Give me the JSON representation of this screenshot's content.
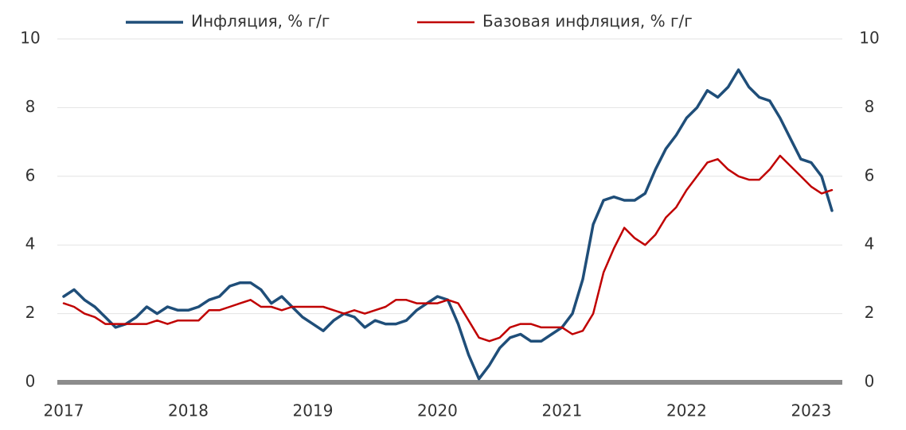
{
  "chart_data": {
    "type": "line",
    "categories": [
      "2017",
      null,
      null,
      null,
      null,
      null,
      null,
      null,
      null,
      null,
      null,
      null,
      "2018",
      null,
      null,
      null,
      null,
      null,
      null,
      null,
      null,
      null,
      null,
      null,
      "2019",
      null,
      null,
      null,
      null,
      null,
      null,
      null,
      null,
      null,
      null,
      null,
      "2020",
      null,
      null,
      null,
      null,
      null,
      null,
      null,
      null,
      null,
      null,
      null,
      "2021",
      null,
      null,
      null,
      null,
      null,
      null,
      null,
      null,
      null,
      null,
      null,
      "2022",
      null,
      null,
      null,
      null,
      null,
      null,
      null,
      null,
      null,
      null,
      null,
      "2023",
      null,
      null
    ],
    "series": [
      {
        "name": "Инфляция, % г/г",
        "color": "#1f4e79",
        "values": [
          2.5,
          2.7,
          2.4,
          2.2,
          1.9,
          1.6,
          1.7,
          1.9,
          2.2,
          2.0,
          2.2,
          2.1,
          2.1,
          2.2,
          2.4,
          2.5,
          2.8,
          2.9,
          2.9,
          2.7,
          2.3,
          2.5,
          2.2,
          1.9,
          1.7,
          1.5,
          1.8,
          2.0,
          1.9,
          1.6,
          1.8,
          1.7,
          1.7,
          1.8,
          2.1,
          2.3,
          2.5,
          2.4,
          1.7,
          0.8,
          0.1,
          0.5,
          1.0,
          1.3,
          1.4,
          1.2,
          1.2,
          1.4,
          1.6,
          2.0,
          3.0,
          4.6,
          5.3,
          5.4,
          5.3,
          5.3,
          5.5,
          6.2,
          6.8,
          7.2,
          7.7,
          8.0,
          8.5,
          8.3,
          8.6,
          9.1,
          8.6,
          8.3,
          8.2,
          7.7,
          7.1,
          6.5,
          6.4,
          6.0,
          5.0
        ]
      },
      {
        "name": "Базовая инфляция, % г/г",
        "color": "#c00000",
        "values": [
          2.3,
          2.2,
          2.0,
          1.9,
          1.7,
          1.7,
          1.7,
          1.7,
          1.7,
          1.8,
          1.7,
          1.8,
          1.8,
          1.8,
          2.1,
          2.1,
          2.2,
          2.3,
          2.4,
          2.2,
          2.2,
          2.1,
          2.2,
          2.2,
          2.2,
          2.2,
          2.1,
          2.0,
          2.1,
          2.0,
          2.1,
          2.2,
          2.4,
          2.4,
          2.3,
          2.3,
          2.3,
          2.4,
          2.3,
          1.8,
          1.3,
          1.2,
          1.3,
          1.6,
          1.7,
          1.7,
          1.6,
          1.6,
          1.6,
          1.4,
          1.5,
          2.0,
          3.2,
          3.9,
          4.5,
          4.2,
          4.0,
          4.3,
          4.8,
          5.1,
          5.6,
          6.0,
          6.4,
          6.5,
          6.2,
          6.0,
          5.9,
          5.9,
          6.2,
          6.6,
          6.3,
          6.0,
          5.7,
          5.5,
          5.6
        ]
      }
    ],
    "ylim": [
      0,
      10
    ],
    "yticks": [
      0,
      2,
      4,
      6,
      8,
      10
    ],
    "y2lim": [
      0,
      10
    ],
    "y2ticks": [
      0,
      2,
      4,
      6,
      8,
      10
    ],
    "grid": true,
    "legend": "top"
  }
}
